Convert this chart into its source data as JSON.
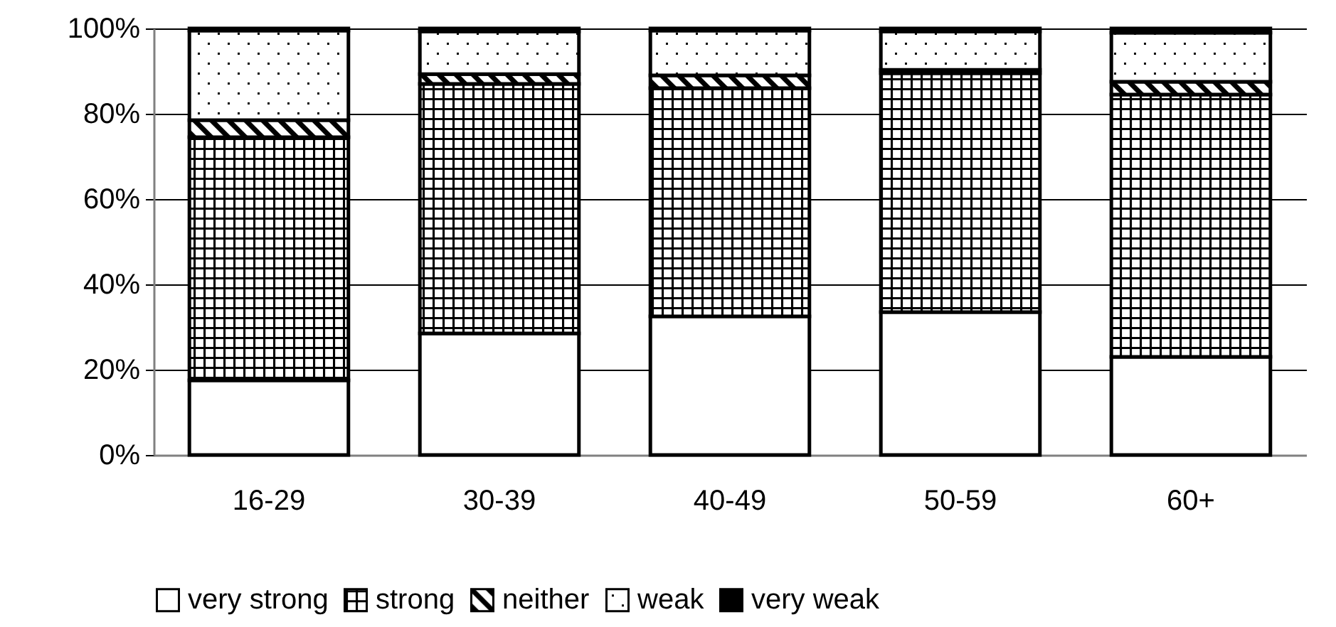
{
  "chart_data": {
    "type": "bar",
    "stacked": true,
    "categories": [
      "16-29",
      "30-39",
      "40-49",
      "50-59",
      "60+"
    ],
    "series": [
      {
        "name": "very strong",
        "color": "#ffffff",
        "values": [
          17.5,
          28.5,
          32.5,
          33.5,
          23
        ]
      },
      {
        "name": "strong",
        "color": "#000000",
        "values": [
          57,
          58.5,
          53.5,
          56,
          61.5
        ]
      },
      {
        "name": "neither",
        "color": "#000000",
        "values": [
          4,
          2.3,
          3,
          0.8,
          3
        ]
      },
      {
        "name": "weak",
        "color": "#000000",
        "values": [
          21,
          10,
          10.5,
          9,
          11.5
        ]
      },
      {
        "name": "very weak",
        "color": "#000000",
        "values": [
          0.5,
          0.7,
          0.5,
          0.7,
          1
        ]
      }
    ],
    "ylim": [
      0,
      100
    ],
    "yticks": [
      {
        "value": 0,
        "label": "0%"
      },
      {
        "value": 20,
        "label": "20%"
      },
      {
        "value": 40,
        "label": "40%"
      },
      {
        "value": 60,
        "label": "60%"
      },
      {
        "value": 80,
        "label": "80%"
      },
      {
        "value": 100,
        "label": "100%"
      }
    ],
    "grid": "y",
    "legend": "bottom"
  }
}
